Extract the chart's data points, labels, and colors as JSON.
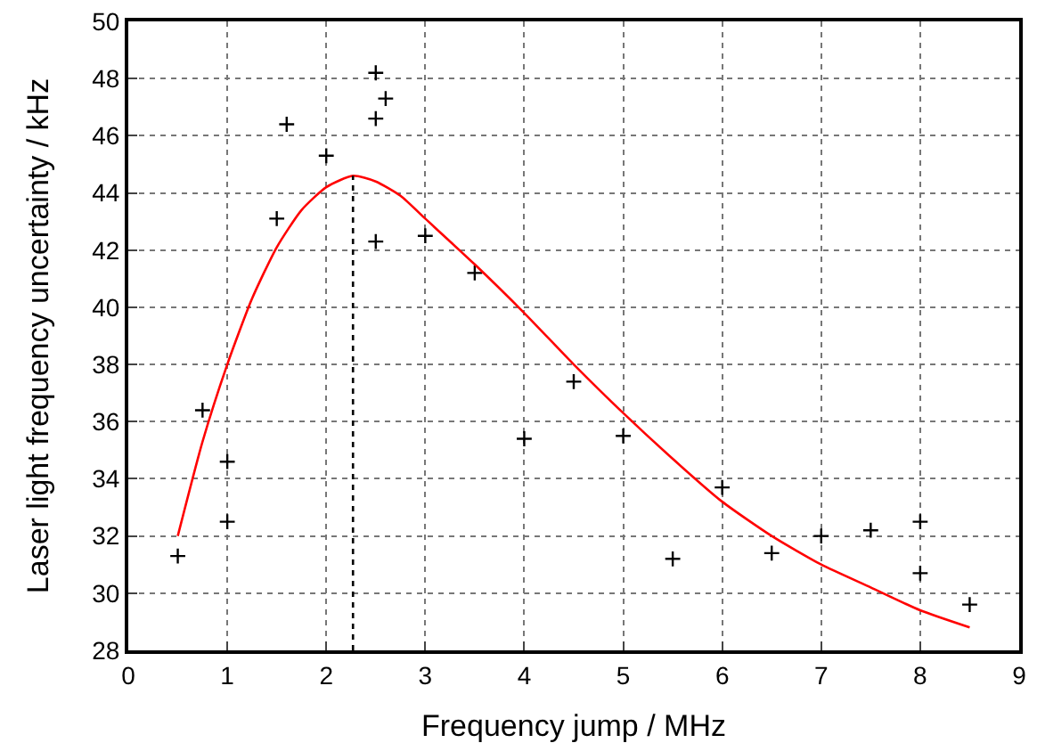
{
  "chart_data": {
    "type": "scatter",
    "xlabel": "Frequency jump / MHz",
    "ylabel": "Laser light frequency uncertainty / kHz",
    "xlim": [
      0,
      9
    ],
    "xticks": [
      0,
      1,
      2,
      3,
      4,
      5,
      6,
      7,
      8,
      9
    ],
    "ylim": [
      28,
      50
    ],
    "yticks": [
      28,
      30,
      32,
      34,
      36,
      38,
      40,
      42,
      44,
      46,
      48,
      50
    ],
    "grid": true,
    "marker": "cross",
    "series": [
      {
        "color": "#000000",
        "x": [
          0.5,
          0.75,
          1,
          1,
          1.5,
          1.6,
          2,
          2.5,
          2.6,
          2.5,
          2.5,
          3,
          3.5,
          4,
          4.5,
          5,
          5.5,
          6,
          6.5,
          7,
          7.5,
          8,
          8,
          8.5
        ],
        "values": [
          31.3,
          36.4,
          34.6,
          32.5,
          43.1,
          46.4,
          45.3,
          48.2,
          47.3,
          46.6,
          42.3,
          42.5,
          41.2,
          35.4,
          37.4,
          35.5,
          31.2,
          33.7,
          31.4,
          32.0,
          32.2,
          32.5,
          30.7,
          29.6
        ]
      },
      {
        "type": "line",
        "color": "#ff0000",
        "marker": "none",
        "line_style": "solid",
        "x": [
          0.5,
          0.75,
          1,
          1.25,
          1.5,
          1.75,
          2,
          2.27,
          2.5,
          2.75,
          3,
          3.5,
          4,
          4.5,
          5,
          5.5,
          6,
          6.5,
          7,
          7.5,
          8,
          8.5
        ],
        "values": [
          32.0,
          35.3,
          38.0,
          40.3,
          42.1,
          43.4,
          44.2,
          44.6,
          44.4,
          43.9,
          43.1,
          41.5,
          39.8,
          38.0,
          36.3,
          34.7,
          33.2,
          32.0,
          31.0,
          30.2,
          29.4,
          28.8
        ]
      },
      {
        "type": "line",
        "color": "#000000",
        "marker": "none",
        "line_style": "dotted",
        "x": [
          2.27,
          2.27
        ],
        "values": [
          28,
          44.6
        ]
      }
    ]
  }
}
